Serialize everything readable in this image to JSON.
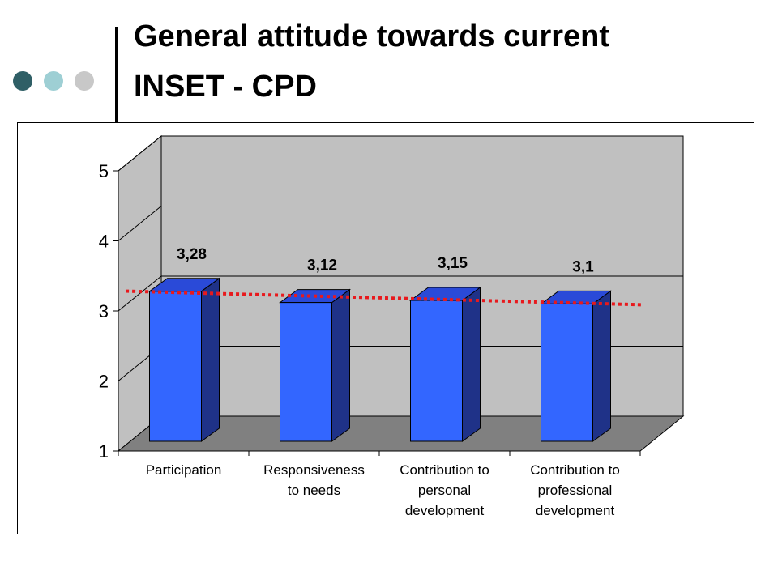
{
  "header": {
    "title_lines": [
      "General attitude towards current",
      "INSET - CPD"
    ]
  },
  "decor": {
    "dot_colors": [
      "#2f5f66",
      "#9ecfd4",
      "#c8c8c8"
    ],
    "accent_bar_color": "#000000"
  },
  "chart_data": {
    "type": "bar",
    "title": "",
    "xlabel": "",
    "ylabel": "",
    "categories": [
      [
        "Participation"
      ],
      [
        "Responsiveness",
        "to needs"
      ],
      [
        "Contribution to",
        "personal",
        "development"
      ],
      [
        "Contribution to",
        "professional",
        "development"
      ]
    ],
    "values": [
      3.28,
      3.12,
      3.15,
      3.1
    ],
    "data_labels": [
      "3,28",
      "3,12",
      "3,15",
      "3,1"
    ],
    "ylim": [
      1,
      5
    ],
    "yticks": [
      1,
      2,
      3,
      4,
      5
    ],
    "grid": true,
    "style": "3d-column",
    "trendline": {
      "type": "linear",
      "style": "dotted",
      "color": "#e8191d"
    },
    "colors": {
      "bar_front": "#3366ff",
      "bar_side": "#1f3288",
      "bar_top": "#2a4ad8",
      "wall": "#c0c0c0",
      "floor": "#808080"
    }
  }
}
